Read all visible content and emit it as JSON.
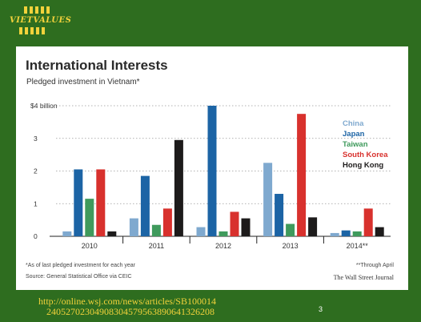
{
  "logo": {
    "text": "VIETVALUES",
    "icon": "bar-stripes-logo",
    "color": "#f2d23b"
  },
  "chart_data": {
    "type": "bar",
    "title": "International Interests",
    "subtitle": "Pledged investment in Vietnam*",
    "categories": [
      "2010",
      "2011",
      "2012",
      "2013",
      "2014**"
    ],
    "y_ticks": [
      "0",
      "1",
      "2",
      "3",
      "$4 billion"
    ],
    "ylim": [
      0,
      4
    ],
    "grid": true,
    "legend_position": "right",
    "series": [
      {
        "name": "China",
        "color": "#7fa9cf",
        "values": [
          0.15,
          0.55,
          0.28,
          2.25,
          0.1
        ]
      },
      {
        "name": "Japan",
        "color": "#1c64a5",
        "values": [
          2.05,
          1.85,
          4.0,
          1.3,
          0.18
        ]
      },
      {
        "name": "Taiwan",
        "color": "#3f9a5c",
        "values": [
          1.15,
          0.35,
          0.15,
          0.38,
          0.15
        ]
      },
      {
        "name": "South Korea",
        "color": "#d8312d",
        "values": [
          2.05,
          0.85,
          0.75,
          3.75,
          0.85
        ]
      },
      {
        "name": "Hong Kong",
        "color": "#1d1b1b",
        "values": [
          0.15,
          2.95,
          0.55,
          0.58,
          0.28
        ]
      }
    ],
    "footnote_1": "*As of last pledged investment for each year",
    "footnote_2": "**Through April",
    "source": "Source: General Statistical Office via CEIC",
    "credit": "The Wall Street Journal"
  },
  "footer": {
    "url_line1": "http://online.wsj.com/news/articles/SB100014",
    "url_line2": "24052702304908304579563890641326208",
    "page_number": "3"
  }
}
